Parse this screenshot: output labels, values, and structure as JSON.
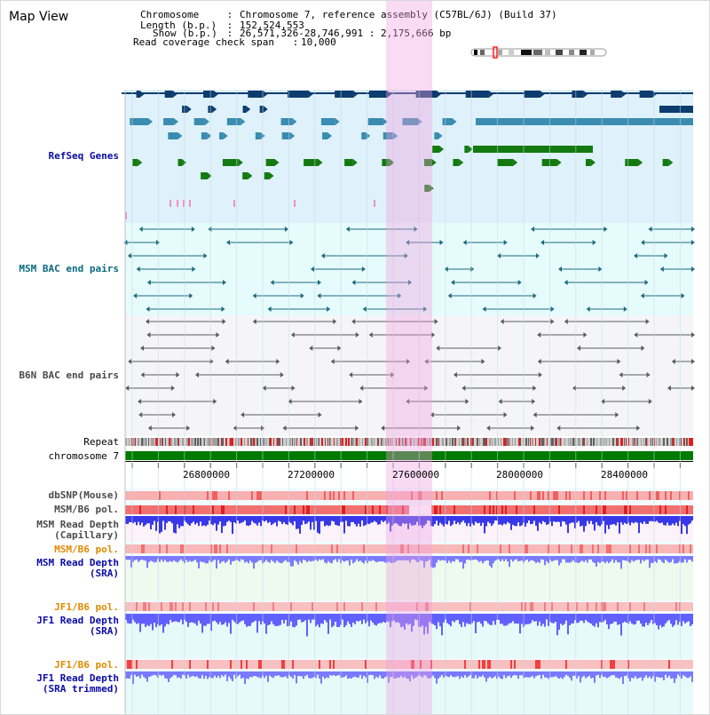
{
  "app_title": "Map View",
  "info": {
    "chromosome_label": "Chromosome",
    "chromosome_value": "Chromosome 7, reference assembly (C57BL/6J) (Build 37)",
    "length_label": "Length (b.p.)",
    "length_value": "152,524,553",
    "show_label": "Show (b.p.)",
    "show_value": "26,571,326-28,746,991 : 2,175,666 bp",
    "read_span_label": "Read coverage check span",
    "read_span_value": "10,000",
    "sep": " : "
  },
  "tracks": {
    "refseq": "RefSeq Genes",
    "msm_bac": "MSM BAC end pairs",
    "b6n_bac": "B6N BAC end pairs",
    "repeat": "Repeat",
    "chromosome": "chromosome 7",
    "dbsnp": "dbSNP(Mouse)",
    "msm_b6_pol": "MSM/B6 pol.",
    "msm_read_cap_1": "MSM Read Depth",
    "msm_read_cap_2": "(Capillary)",
    "msm_b6_pol_2": "MSM/B6 pol.",
    "msm_read_sra_1": "MSM Read Depth",
    "msm_read_sra_2": "(SRA)",
    "jf1_b6_pol": "JF1/B6 pol.",
    "jf1_read_sra_1": "JF1 Read Depth",
    "jf1_read_sra_2": "(SRA)",
    "jf1_b6_pol_2": "JF1/B6 pol.",
    "jf1_read_trim_1": "JF1 Read Depth",
    "jf1_read_trim_2": "(SRA trimmed)"
  },
  "axis": {
    "ticks": [
      "26800000",
      "27200000",
      "27600000",
      "28000000",
      "28400000"
    ]
  },
  "colors": {
    "refseq_dark": "#0d3c6e",
    "refseq_mid": "#3a8cb0",
    "refseq_green": "#137a10",
    "msm_line": "#1a6a80",
    "b6n_line": "#5a5a5a",
    "label_blue": "#0a0aa8",
    "label_teal": "#0a6a80",
    "label_gray": "#4a4a4a",
    "label_orange": "#e08a00",
    "highlight": "#f8d4f2",
    "depth_blue": "#6a6aff",
    "pol_red": "#e83030"
  }
}
